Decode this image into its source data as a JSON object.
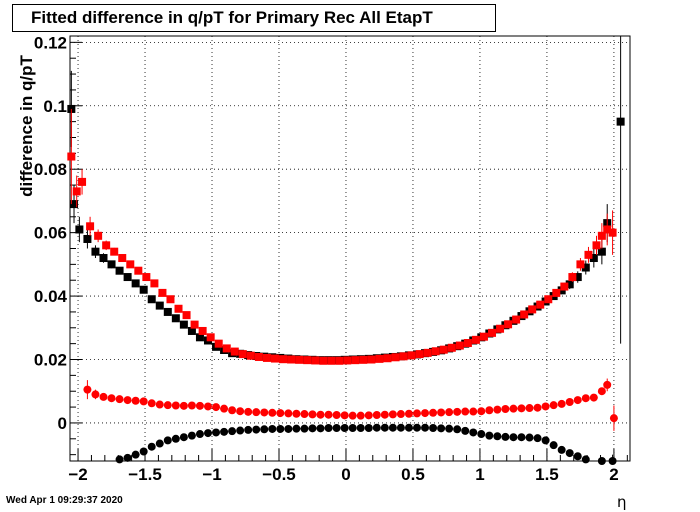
{
  "chart_data": {
    "type": "scatter",
    "title": "Fitted difference in q/pT for Primary Rec All EtapT",
    "xlabel": "η",
    "ylabel": "difference in q/pT",
    "xlim": [
      -2.06,
      2.12
    ],
    "ylim": [
      -0.012,
      0.122
    ],
    "grid": true,
    "x_ticks": [
      -2,
      -1.5,
      -1,
      -0.5,
      0,
      0.5,
      1,
      1.5,
      2
    ],
    "x_tick_labels": [
      "−2",
      "−1.5",
      "−1",
      "−0.5",
      "0",
      "0.5",
      "1",
      "1.5",
      "2"
    ],
    "y_ticks": [
      0,
      0.02,
      0.04,
      0.06,
      0.08,
      0.1,
      0.12
    ],
    "y_tick_labels": [
      "0",
      "0.02",
      "0.04",
      "0.06",
      "0.08",
      "0.1",
      "0.12"
    ],
    "series": [
      {
        "marker": "square",
        "color": "#000000",
        "x": [
          -2.05,
          -2.03,
          -1.99,
          -1.93,
          -1.87,
          -1.81,
          -1.75,
          -1.69,
          -1.63,
          -1.57,
          -1.51,
          -1.45,
          -1.39,
          -1.33,
          -1.27,
          -1.21,
          -1.15,
          -1.09,
          -1.03,
          -0.97,
          -0.91,
          -0.85,
          -0.79,
          -0.73,
          -0.67,
          -0.61,
          -0.55,
          -0.49,
          -0.43,
          -0.37,
          -0.31,
          -0.25,
          -0.19,
          -0.13,
          -0.07,
          -0.01,
          0.05,
          0.11,
          0.17,
          0.23,
          0.29,
          0.35,
          0.41,
          0.47,
          0.53,
          0.59,
          0.65,
          0.71,
          0.77,
          0.83,
          0.89,
          0.95,
          1.01,
          1.07,
          1.13,
          1.19,
          1.25,
          1.31,
          1.37,
          1.43,
          1.49,
          1.55,
          1.61,
          1.67,
          1.73,
          1.79,
          1.85,
          1.91,
          1.95,
          2.05
        ],
        "y": [
          0.099,
          0.069,
          0.061,
          0.058,
          0.054,
          0.052,
          0.05,
          0.048,
          0.046,
          0.044,
          0.042,
          0.039,
          0.037,
          0.035,
          0.033,
          0.031,
          0.029,
          0.027,
          0.026,
          0.024,
          0.023,
          0.022,
          0.0218,
          0.0214,
          0.0211,
          0.0209,
          0.0207,
          0.0205,
          0.0203,
          0.0201,
          0.02,
          0.0199,
          0.0198,
          0.0198,
          0.0198,
          0.0199,
          0.02,
          0.0201,
          0.0202,
          0.0204,
          0.0206,
          0.0208,
          0.021,
          0.0213,
          0.0216,
          0.022,
          0.0224,
          0.0229,
          0.0235,
          0.0242,
          0.025,
          0.026,
          0.027,
          0.0282,
          0.0295,
          0.0308,
          0.0322,
          0.0337,
          0.0352,
          0.0367,
          0.0383,
          0.04,
          0.0418,
          0.0437,
          0.046,
          0.049,
          0.052,
          0.054,
          0.063,
          0.095
        ],
        "yerr": [
          0.012,
          0.006,
          0.004,
          0.003,
          0.002,
          0.0015,
          0.0012,
          0.001,
          0.001,
          0.001,
          0.0009,
          0.0009,
          0.0008,
          0.0008,
          0.0008,
          0.0007,
          0.0007,
          0.0007,
          0.0007,
          0.0007,
          0.0007,
          0.0006,
          0.0006,
          0.0006,
          0.0006,
          0.0006,
          0.0006,
          0.0006,
          0.0006,
          0.0006,
          0.0006,
          0.0006,
          0.0006,
          0.0006,
          0.0006,
          0.0006,
          0.0006,
          0.0006,
          0.0006,
          0.0006,
          0.0006,
          0.0006,
          0.0006,
          0.0006,
          0.0006,
          0.0006,
          0.0006,
          0.0006,
          0.0006,
          0.0006,
          0.0006,
          0.0007,
          0.0007,
          0.0007,
          0.0007,
          0.0008,
          0.0008,
          0.0008,
          0.0009,
          0.0009,
          0.001,
          0.001,
          0.0012,
          0.0015,
          0.0018,
          0.0022,
          0.003,
          0.004,
          0.006,
          0.07
        ]
      },
      {
        "marker": "square",
        "color": "#ff0000",
        "x": [
          -2.05,
          -2.01,
          -1.97,
          -1.91,
          -1.85,
          -1.79,
          -1.73,
          -1.67,
          -1.61,
          -1.55,
          -1.49,
          -1.43,
          -1.37,
          -1.31,
          -1.25,
          -1.19,
          -1.13,
          -1.07,
          -1.01,
          -0.95,
          -0.89,
          -0.83,
          -0.77,
          -0.71,
          -0.65,
          -0.59,
          -0.53,
          -0.47,
          -0.41,
          -0.35,
          -0.29,
          -0.23,
          -0.17,
          -0.11,
          -0.05,
          0.01,
          0.07,
          0.13,
          0.19,
          0.25,
          0.31,
          0.37,
          0.43,
          0.49,
          0.55,
          0.61,
          0.67,
          0.73,
          0.79,
          0.85,
          0.91,
          0.97,
          1.03,
          1.09,
          1.15,
          1.21,
          1.27,
          1.33,
          1.39,
          1.45,
          1.51,
          1.57,
          1.63,
          1.69,
          1.75,
          1.81,
          1.87,
          1.91,
          1.95,
          1.99
        ],
        "y": [
          0.084,
          0.073,
          0.076,
          0.062,
          0.059,
          0.056,
          0.054,
          0.052,
          0.05,
          0.048,
          0.046,
          0.044,
          0.041,
          0.039,
          0.036,
          0.034,
          0.031,
          0.029,
          0.027,
          0.025,
          0.0235,
          0.0225,
          0.0217,
          0.0212,
          0.0208,
          0.0205,
          0.0203,
          0.0201,
          0.02,
          0.0199,
          0.0198,
          0.0197,
          0.0196,
          0.0196,
          0.0196,
          0.0197,
          0.0198,
          0.0199,
          0.02,
          0.0202,
          0.0204,
          0.0207,
          0.021,
          0.0213,
          0.0217,
          0.0221,
          0.0226,
          0.0231,
          0.0237,
          0.0244,
          0.0252,
          0.0262,
          0.0272,
          0.0284,
          0.0297,
          0.0311,
          0.0326,
          0.0342,
          0.0358,
          0.0373,
          0.039,
          0.041,
          0.043,
          0.046,
          0.05,
          0.053,
          0.056,
          0.059,
          0.061,
          0.06
        ],
        "yerr": [
          0.015,
          0.005,
          0.004,
          0.003,
          0.002,
          0.0015,
          0.0012,
          0.001,
          0.001,
          0.0009,
          0.0009,
          0.0008,
          0.0008,
          0.0008,
          0.0007,
          0.0007,
          0.0007,
          0.0007,
          0.0006,
          0.0006,
          0.0006,
          0.0006,
          0.0006,
          0.0006,
          0.0006,
          0.0006,
          0.0006,
          0.0006,
          0.0006,
          0.0006,
          0.0006,
          0.0006,
          0.0006,
          0.0006,
          0.0006,
          0.0006,
          0.0006,
          0.0006,
          0.0006,
          0.0006,
          0.0006,
          0.0006,
          0.0006,
          0.0006,
          0.0006,
          0.0006,
          0.0006,
          0.0006,
          0.0006,
          0.0006,
          0.0006,
          0.0007,
          0.0007,
          0.0007,
          0.0007,
          0.0008,
          0.0008,
          0.0008,
          0.0009,
          0.0009,
          0.001,
          0.001,
          0.0012,
          0.0015,
          0.002,
          0.0025,
          0.003,
          0.004,
          0.005,
          0.007
        ]
      },
      {
        "marker": "circle",
        "color": "#ff0000",
        "x": [
          -1.93,
          -1.87,
          -1.81,
          -1.75,
          -1.69,
          -1.63,
          -1.57,
          -1.51,
          -1.45,
          -1.39,
          -1.33,
          -1.27,
          -1.21,
          -1.15,
          -1.09,
          -1.03,
          -0.97,
          -0.91,
          -0.85,
          -0.79,
          -0.73,
          -0.67,
          -0.61,
          -0.55,
          -0.49,
          -0.43,
          -0.37,
          -0.31,
          -0.25,
          -0.19,
          -0.13,
          -0.07,
          -0.01,
          0.05,
          0.11,
          0.17,
          0.23,
          0.29,
          0.35,
          0.41,
          0.47,
          0.53,
          0.59,
          0.65,
          0.71,
          0.77,
          0.83,
          0.89,
          0.95,
          1.01,
          1.07,
          1.13,
          1.19,
          1.25,
          1.31,
          1.37,
          1.43,
          1.49,
          1.55,
          1.61,
          1.67,
          1.73,
          1.79,
          1.85,
          1.91,
          1.95,
          2.0
        ],
        "y": [
          0.0105,
          0.009,
          0.0082,
          0.0078,
          0.0075,
          0.0072,
          0.007,
          0.0068,
          0.0062,
          0.0058,
          0.0056,
          0.0055,
          0.0054,
          0.0055,
          0.0054,
          0.0052,
          0.005,
          0.0045,
          0.004,
          0.0037,
          0.0035,
          0.0034,
          0.0033,
          0.0032,
          0.0031,
          0.003,
          0.0029,
          0.0028,
          0.0027,
          0.0026,
          0.0026,
          0.0025,
          0.0024,
          0.0023,
          0.0023,
          0.0024,
          0.0025,
          0.0026,
          0.0027,
          0.0028,
          0.0029,
          0.003,
          0.0031,
          0.0032,
          0.0033,
          0.0034,
          0.0035,
          0.0036,
          0.0036,
          0.0037,
          0.004,
          0.0042,
          0.0044,
          0.0045,
          0.0046,
          0.0047,
          0.0048,
          0.0052,
          0.0056,
          0.006,
          0.0066,
          0.0072,
          0.0078,
          0.008,
          0.01,
          0.012,
          0.0015
        ],
        "yerr": [
          0.003,
          0.0015,
          0.0008,
          0.0005,
          0.0004,
          0.0003,
          0.0003,
          0.0003,
          0.0003,
          0.0003,
          0.0003,
          0.0003,
          0.0003,
          0.0003,
          0.0003,
          0.0003,
          0.0003,
          0.0003,
          0.0003,
          0.0003,
          0.0003,
          0.0003,
          0.0003,
          0.0003,
          0.0003,
          0.0003,
          0.0003,
          0.0003,
          0.0003,
          0.0003,
          0.0003,
          0.0003,
          0.0003,
          0.0003,
          0.0003,
          0.0003,
          0.0003,
          0.0003,
          0.0003,
          0.0003,
          0.0003,
          0.0003,
          0.0003,
          0.0003,
          0.0003,
          0.0003,
          0.0003,
          0.0003,
          0.0003,
          0.0003,
          0.0003,
          0.0003,
          0.0003,
          0.0003,
          0.0003,
          0.0003,
          0.0003,
          0.0003,
          0.0003,
          0.0003,
          0.0003,
          0.0004,
          0.0005,
          0.0006,
          0.001,
          0.002,
          0.004
        ]
      },
      {
        "marker": "circle",
        "color": "#000000",
        "x": [
          -1.69,
          -1.63,
          -1.57,
          -1.51,
          -1.45,
          -1.39,
          -1.33,
          -1.27,
          -1.21,
          -1.15,
          -1.09,
          -1.03,
          -0.97,
          -0.91,
          -0.85,
          -0.79,
          -0.73,
          -0.67,
          -0.61,
          -0.55,
          -0.49,
          -0.43,
          -0.37,
          -0.31,
          -0.25,
          -0.19,
          -0.13,
          -0.07,
          -0.01,
          0.05,
          0.11,
          0.17,
          0.23,
          0.29,
          0.35,
          0.41,
          0.47,
          0.53,
          0.59,
          0.65,
          0.71,
          0.77,
          0.83,
          0.89,
          0.95,
          1.01,
          1.07,
          1.13,
          1.19,
          1.25,
          1.31,
          1.37,
          1.43,
          1.49,
          1.55,
          1.61,
          1.67,
          1.73,
          1.79,
          1.91,
          1.99
        ],
        "y": [
          -0.0115,
          -0.011,
          -0.01,
          -0.009,
          -0.0075,
          -0.0065,
          -0.0055,
          -0.005,
          -0.0045,
          -0.004,
          -0.0035,
          -0.0032,
          -0.003,
          -0.0028,
          -0.0026,
          -0.0024,
          -0.0022,
          -0.0021,
          -0.002,
          -0.0019,
          -0.0019,
          -0.0019,
          -0.0018,
          -0.0018,
          -0.0017,
          -0.0017,
          -0.0016,
          -0.0016,
          -0.0016,
          -0.0016,
          -0.0016,
          -0.0016,
          -0.0015,
          -0.0015,
          -0.0015,
          -0.0015,
          -0.0015,
          -0.0015,
          -0.0015,
          -0.0016,
          -0.0017,
          -0.0018,
          -0.002,
          -0.0025,
          -0.003,
          -0.0035,
          -0.004,
          -0.0042,
          -0.0044,
          -0.0045,
          -0.0045,
          -0.0046,
          -0.0048,
          -0.0055,
          -0.007,
          -0.0085,
          -0.0095,
          -0.0105,
          -0.0115,
          -0.012,
          -0.012
        ],
        "yerr": [
          0.0008,
          0.0005,
          0.0004,
          0.0004,
          0.0003,
          0.0003,
          0.0003,
          0.0003,
          0.0003,
          0.0003,
          0.0003,
          0.0003,
          0.0003,
          0.0003,
          0.0003,
          0.0003,
          0.0003,
          0.0003,
          0.0003,
          0.0003,
          0.0003,
          0.0003,
          0.0003,
          0.0003,
          0.0003,
          0.0003,
          0.0003,
          0.0003,
          0.0003,
          0.0003,
          0.0003,
          0.0003,
          0.0003,
          0.0003,
          0.0003,
          0.0003,
          0.0003,
          0.0003,
          0.0003,
          0.0003,
          0.0003,
          0.0003,
          0.0003,
          0.0003,
          0.0003,
          0.0003,
          0.0003,
          0.0003,
          0.0003,
          0.0003,
          0.0003,
          0.0003,
          0.0003,
          0.0004,
          0.0004,
          0.0005,
          0.0006,
          0.0007,
          0.0008,
          0.001,
          0.002
        ]
      }
    ]
  },
  "timestamp": "Wed Apr  1 09:29:37 2020"
}
